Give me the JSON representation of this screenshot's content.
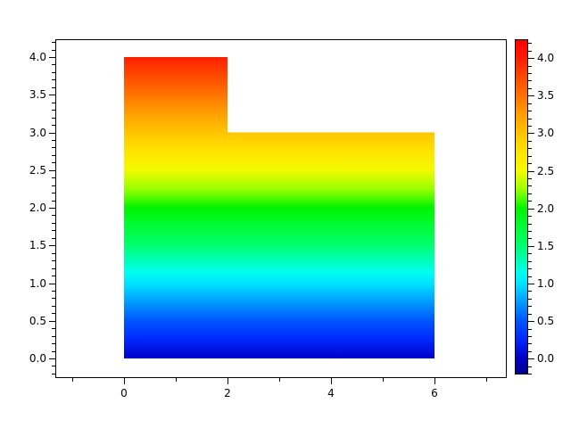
{
  "figure": {
    "background": "#ffffff"
  },
  "axes": {
    "x_major_ticks": [
      {
        "v": 0,
        "label": "0"
      },
      {
        "v": 2,
        "label": "2"
      },
      {
        "v": 4,
        "label": "4"
      },
      {
        "v": 6,
        "label": "6"
      }
    ],
    "x_minor_ticks": [
      -1,
      1,
      3,
      5,
      7
    ],
    "y_major_ticks": [
      {
        "v": 0.0,
        "label": "0.0"
      },
      {
        "v": 0.5,
        "label": "0.5"
      },
      {
        "v": 1.0,
        "label": "1.0"
      },
      {
        "v": 1.5,
        "label": "1.5"
      },
      {
        "v": 2.0,
        "label": "2.0"
      },
      {
        "v": 2.5,
        "label": "2.5"
      },
      {
        "v": 3.0,
        "label": "3.0"
      },
      {
        "v": 3.5,
        "label": "3.5"
      },
      {
        "v": 4.0,
        "label": "4.0"
      }
    ],
    "y_minor_ticks": {
      "start": -0.2,
      "end": 4.2,
      "step": 0.1
    }
  },
  "colorbar": {
    "vmin": -0.21,
    "vmax": 4.25,
    "major_ticks": [
      {
        "v": 0.0,
        "label": "0.0"
      },
      {
        "v": 0.5,
        "label": "0.5"
      },
      {
        "v": 1.0,
        "label": "1.0"
      },
      {
        "v": 1.5,
        "label": "1.5"
      },
      {
        "v": 2.0,
        "label": "2.0"
      },
      {
        "v": 2.5,
        "label": "2.5"
      },
      {
        "v": 3.0,
        "label": "3.0"
      },
      {
        "v": 3.5,
        "label": "3.5"
      },
      {
        "v": 4.0,
        "label": "4.0"
      }
    ],
    "minor_ticks": {
      "start": -0.2,
      "end": 4.2,
      "step": 0.1
    }
  },
  "colormap_stops": [
    {
      "v": -0.21,
      "c": "#000092"
    },
    {
      "v": 0.0,
      "c": "#0000c8"
    },
    {
      "v": 0.25,
      "c": "#0028ff"
    },
    {
      "v": 0.5,
      "c": "#0055ff"
    },
    {
      "v": 0.75,
      "c": "#009cff"
    },
    {
      "v": 1.0,
      "c": "#00e4ff"
    },
    {
      "v": 1.15,
      "c": "#00ffee"
    },
    {
      "v": 1.5,
      "c": "#00ff70"
    },
    {
      "v": 1.75,
      "c": "#00fc38"
    },
    {
      "v": 2.0,
      "c": "#00f400"
    },
    {
      "v": 2.25,
      "c": "#9aff00"
    },
    {
      "v": 2.5,
      "c": "#f4fa00"
    },
    {
      "v": 2.75,
      "c": "#ffe400"
    },
    {
      "v": 3.0,
      "c": "#ffc400"
    },
    {
      "v": 3.25,
      "c": "#ffa000"
    },
    {
      "v": 3.5,
      "c": "#ff7400"
    },
    {
      "v": 3.75,
      "c": "#ff4a00"
    },
    {
      "v": 4.0,
      "c": "#ff1e00"
    },
    {
      "v": 4.25,
      "c": "#fb0000"
    }
  ],
  "chart_data": {
    "type": "heatmap",
    "subtype": "pseudocolor-region",
    "title": "",
    "xlabel": "",
    "ylabel": "",
    "xlim": [
      -1.33,
      7.4
    ],
    "ylim": [
      -0.26,
      4.24
    ],
    "domain_polygon": [
      [
        0,
        0
      ],
      [
        6,
        0
      ],
      [
        6,
        3
      ],
      [
        2,
        3
      ],
      [
        2,
        4
      ],
      [
        0,
        4
      ]
    ],
    "value_encoding": "color encodes the y coordinate (c = y), smooth vertical gradient",
    "value_range": [
      0,
      4
    ],
    "colormap": "jet-like rainbow (navy-blue-cyan-green-yellow-orange-red)",
    "x_ticks": [
      0,
      2,
      4,
      6
    ],
    "y_ticks": [
      0,
      0.5,
      1,
      1.5,
      2,
      2.5,
      3,
      3.5,
      4
    ],
    "colorbar_ticks": [
      0,
      0.5,
      1,
      1.5,
      2,
      2.5,
      3,
      3.5,
      4
    ],
    "grid": false,
    "legend": "none"
  }
}
